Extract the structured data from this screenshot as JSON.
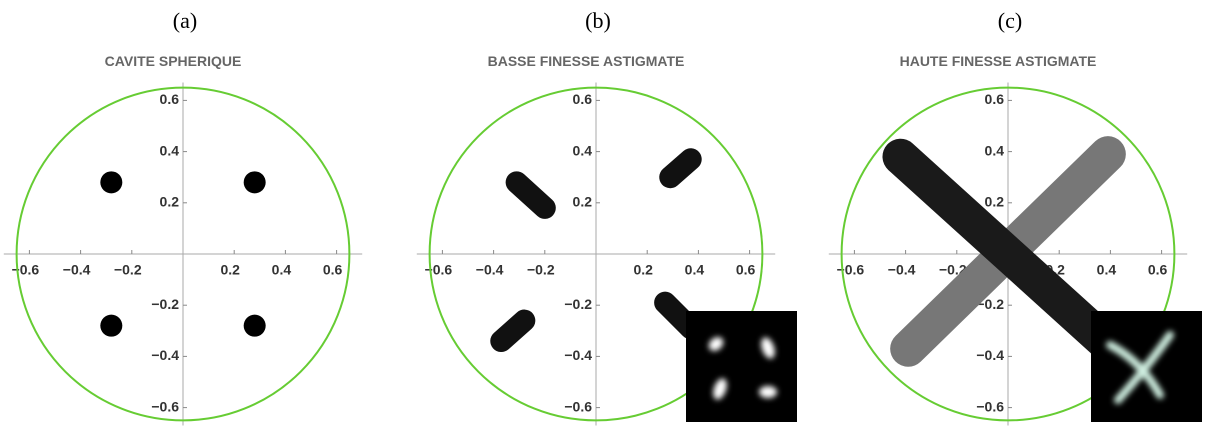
{
  "chart_data": [
    {
      "type": "scatter",
      "label": "(a)",
      "title": "CAVITE SPHERIQUE",
      "xlim": [
        -0.7,
        0.7
      ],
      "ylim": [
        -0.67,
        0.67
      ],
      "xticks": [
        {
          "value": -0.6,
          "label": "−0.6"
        },
        {
          "value": -0.4,
          "label": "−0.4"
        },
        {
          "value": -0.2,
          "label": "−0.2"
        },
        0.2,
        0.4,
        0.6
      ],
      "yticks": [
        {
          "value": -0.6,
          "label": "−0.6"
        },
        {
          "value": -0.4,
          "label": "−0.4"
        },
        {
          "value": -0.2,
          "label": "−0.2"
        },
        0.2,
        0.4,
        0.6
      ],
      "circle": {
        "radius": 0.65,
        "color": "#66cc33"
      },
      "series": [
        {
          "color": "#000000",
          "x": [
            -0.28,
            0.28,
            -0.28,
            0.28
          ],
          "y": [
            0.28,
            0.28,
            -0.28,
            -0.28
          ]
        }
      ]
    },
    {
      "type": "line",
      "label": "(b)",
      "title": "BASSE FINESSE ASTIGMATE",
      "xlim": [
        -0.7,
        0.7
      ],
      "ylim": [
        -0.67,
        0.67
      ],
      "xticks": [
        {
          "value": -0.6,
          "label": "−0.6"
        },
        {
          "value": -0.4,
          "label": "−0.4"
        },
        {
          "value": -0.2,
          "label": "−0.2"
        },
        0.2,
        0.4,
        0.6
      ],
      "yticks": [
        {
          "value": -0.6,
          "label": "−0.6"
        },
        {
          "value": -0.4,
          "label": "−0.4"
        },
        {
          "value": -0.2,
          "label": "−0.2"
        },
        0.2,
        0.4,
        0.6
      ],
      "circle": {
        "radius": 0.65,
        "color": "#66cc33"
      },
      "series": [
        {
          "color": "#111111",
          "x": [
            -0.31,
            -0.2
          ],
          "y": [
            0.28,
            0.18
          ]
        },
        {
          "color": "#111111",
          "x": [
            0.29,
            0.37
          ],
          "y": [
            0.3,
            0.37
          ]
        },
        {
          "color": "#111111",
          "x": [
            -0.37,
            -0.28
          ],
          "y": [
            -0.34,
            -0.26
          ]
        },
        {
          "color": "#111111",
          "x": [
            0.27,
            0.37
          ],
          "y": [
            -0.19,
            -0.29
          ]
        }
      ]
    },
    {
      "type": "line",
      "label": "(c)",
      "title": "HAUTE FINESSE ASTIGMATE",
      "xlim": [
        -0.7,
        0.7
      ],
      "ylim": [
        -0.67,
        0.67
      ],
      "xticks": [
        {
          "value": -0.6,
          "label": "−0.6"
        },
        {
          "value": -0.4,
          "label": "−0.4"
        },
        {
          "value": -0.2,
          "label": "−0.2"
        },
        0.2,
        0.4,
        0.6
      ],
      "yticks": [
        {
          "value": -0.6,
          "label": "−0.6"
        },
        {
          "value": -0.4,
          "label": "−0.4"
        },
        {
          "value": -0.2,
          "label": "−0.2"
        },
        0.2,
        0.4,
        0.6
      ],
      "circle": {
        "radius": 0.65,
        "color": "#66cc33"
      },
      "series": [
        {
          "color": "#777777",
          "x": [
            -0.39,
            0.39
          ],
          "y": [
            -0.37,
            0.39
          ]
        },
        {
          "color": "#1a1a1a",
          "x": [
            -0.42,
            0.42
          ],
          "y": [
            0.38,
            -0.38
          ]
        }
      ]
    }
  ]
}
